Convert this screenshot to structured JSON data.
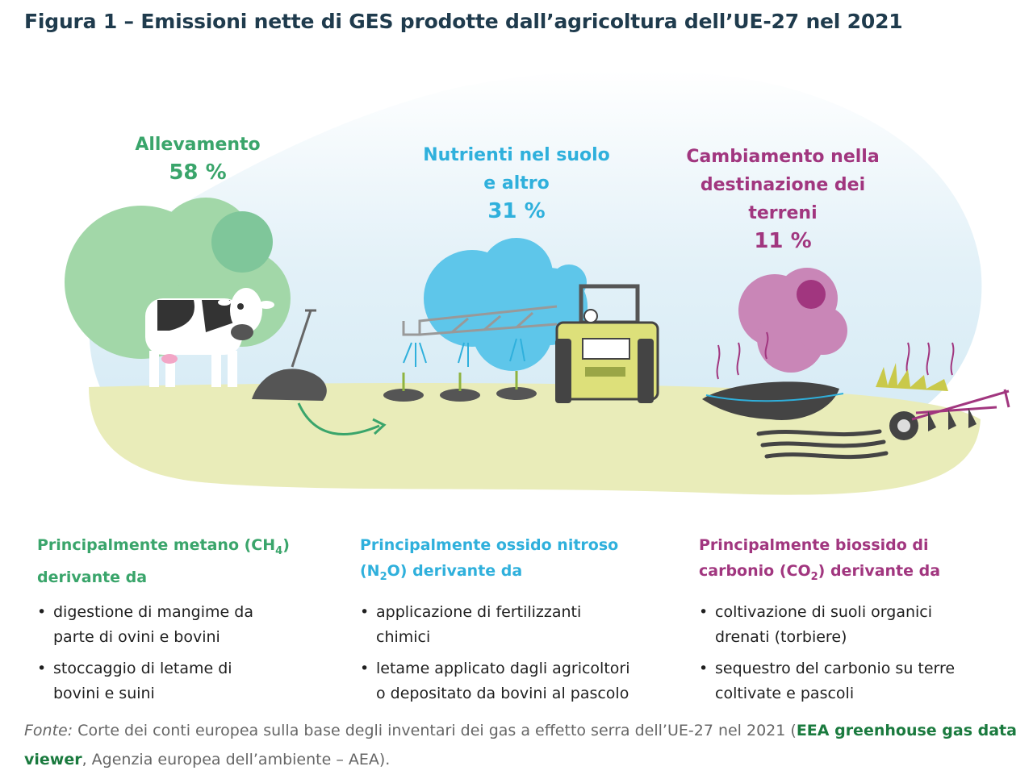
{
  "title": "Figura 1 – Emissioni nette di GES prodotte dall’agricoltura dell’UE-27 nel 2021",
  "categories": [
    {
      "label_lines": [
        "Allevamento"
      ],
      "pct": "58 %",
      "color": "#3aa56b"
    },
    {
      "label_lines": [
        "Nutrienti nel suolo",
        "e altro"
      ],
      "pct": "31 %",
      "color": "#2fb0dc"
    },
    {
      "label_lines": [
        "Cambiamento nella",
        "destinazione dei",
        "terreni"
      ],
      "pct": "11 %",
      "color": "#a1367f"
    }
  ],
  "columns": [
    {
      "head_pre": "Principalmente metano (CH",
      "head_sub": "4",
      "head_post": ")",
      "head_line2": "derivante da",
      "bullets": [
        [
          "digestione di mangime da",
          "parte di ovini e bovini"
        ],
        [
          "stoccaggio di letame di",
          "bovini e suini"
        ]
      ]
    },
    {
      "head_pre": "Principalmente ossido nitroso",
      "head_line2_pre": "(N",
      "head_sub": "2",
      "head_line2_post": "O) derivante da",
      "bullets": [
        [
          "applicazione di fertilizzanti",
          "chimici"
        ],
        [
          "letame applicato dagli agricoltori",
          "o depositato da bovini al pascolo"
        ]
      ]
    },
    {
      "head_pre": "Principalmente biossido di",
      "head_line2_pre": "carbonio (CO",
      "head_sub": "2",
      "head_line2_post": ") derivante da",
      "bullets": [
        [
          "coltivazione di suoli organici",
          "drenati (torbiere)"
        ],
        [
          "sequestro del carbonio su terre",
          "coltivate e pascoli"
        ]
      ]
    }
  ],
  "bullet_char": "•",
  "source": {
    "label": "Fonte:",
    "text": " Corte dei conti europea sulla base degli inventari dei gas a effetto serra dell’UE-27 nel 2021 (",
    "link": "EEA greenhouse gas data viewer",
    "tail": ", Agenzia europea dell’ambiente – AEA)."
  },
  "colors": {
    "green": "#3aa56b",
    "blue": "#2fb0dc",
    "purple": "#a1367f",
    "title": "#1f3b4d"
  }
}
